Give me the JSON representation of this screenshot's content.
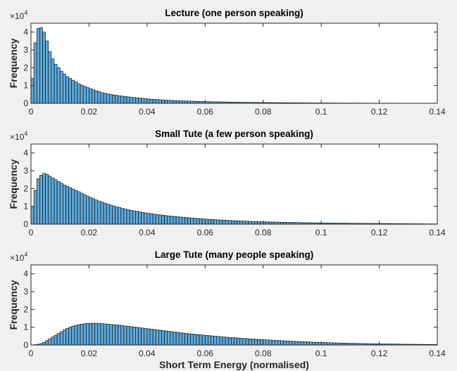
{
  "chart_data": [
    {
      "type": "bar",
      "title": "Lecture (one person speaking)",
      "ylabel": "Frequency",
      "xlabel": "",
      "xlim": [
        0,
        0.14
      ],
      "ylim": [
        0,
        45000
      ],
      "xticks": [
        "0",
        "0.02",
        "0.04",
        "0.06",
        "0.08",
        "0.1",
        "0.12",
        "0.14"
      ],
      "yticks": [
        "0",
        "1",
        "2",
        "3",
        "4"
      ],
      "y_multiplier": {
        "base": "×10",
        "exponent": "4"
      },
      "bin_width": 0.001,
      "bar_color": "#5ea8d9",
      "values": [
        14000,
        34000,
        42000,
        42500,
        40000,
        35000,
        29000,
        25000,
        22000,
        20000,
        18000,
        16500,
        15000,
        14000,
        13000,
        12000,
        11000,
        10200,
        9500,
        8800,
        8200,
        7600,
        7000,
        6500,
        6000,
        5600,
        5300,
        5000,
        4700,
        4500,
        4200,
        4000,
        3800,
        3600,
        3400,
        3200,
        3050,
        2900,
        2750,
        2600,
        2450,
        2300,
        2200,
        2100,
        2000,
        1900,
        1800,
        1700,
        1600,
        1500,
        1450,
        1400,
        1350,
        1300,
        1250,
        1200,
        1150,
        1100,
        1050,
        1000,
        950,
        900,
        870,
        840,
        810,
        780,
        750,
        720,
        690,
        660,
        630,
        600,
        580,
        560,
        540,
        520,
        500,
        480,
        460,
        440,
        420,
        400,
        385,
        370,
        355,
        340,
        325,
        310,
        300,
        290,
        280,
        270,
        260,
        250,
        240,
        230,
        220,
        210,
        200,
        195,
        190,
        185,
        180,
        175,
        170,
        165,
        160,
        155,
        150,
        145,
        140,
        135,
        130,
        125,
        120,
        115,
        110,
        105,
        100,
        98,
        96,
        94,
        92,
        90,
        88,
        86,
        84,
        82,
        80,
        78,
        76,
        74,
        72,
        70,
        68,
        66,
        64,
        62
      ]
    },
    {
      "type": "bar",
      "title": "Small Tute (a few person speaking)",
      "ylabel": "Frequency",
      "xlabel": "",
      "xlim": [
        0,
        0.14
      ],
      "ylim": [
        0,
        45000
      ],
      "xticks": [
        "0",
        "0.02",
        "0.04",
        "0.06",
        "0.08",
        "0.1",
        "0.12",
        "0.14"
      ],
      "yticks": [
        "0",
        "1",
        "2",
        "3",
        "4"
      ],
      "y_multiplier": {
        "base": "×10",
        "exponent": "4"
      },
      "bin_width": 0.001,
      "bar_color": "#5ea8d9",
      "values": [
        10000,
        19000,
        25500,
        27500,
        28500,
        28000,
        27000,
        26000,
        25000,
        24000,
        23000,
        22000,
        21200,
        20500,
        19700,
        19000,
        18200,
        17400,
        16600,
        15800,
        15000,
        14300,
        13600,
        13000,
        12400,
        11800,
        11200,
        10700,
        10200,
        9700,
        9300,
        8900,
        8500,
        8100,
        7800,
        7500,
        7200,
        6900,
        6600,
        6350,
        6100,
        5850,
        5600,
        5400,
        5200,
        5000,
        4800,
        4600,
        4450,
        4300,
        4150,
        4000,
        3850,
        3700,
        3560,
        3420,
        3290,
        3160,
        3040,
        2920,
        2810,
        2700,
        2600,
        2500,
        2400,
        2310,
        2220,
        2140,
        2060,
        1980,
        1900,
        1830,
        1760,
        1700,
        1640,
        1580,
        1520,
        1470,
        1420,
        1370,
        1320,
        1270,
        1230,
        1190,
        1150,
        1110,
        1070,
        1030,
        1000,
        970,
        940,
        910,
        880,
        850,
        820,
        790,
        770,
        750,
        730,
        710,
        690,
        670,
        650,
        630,
        610,
        590,
        570,
        550,
        530,
        510,
        490,
        470,
        455,
        440,
        425,
        410,
        395,
        380,
        365,
        350,
        340,
        330,
        320,
        310,
        300,
        290,
        280,
        270,
        260,
        250,
        240,
        230,
        220,
        210,
        200,
        190,
        180,
        170,
        160,
        150
      ]
    },
    {
      "type": "bar",
      "title": "Large Tute (many people speaking)",
      "ylabel": "Frequency",
      "xlabel": "Short Term Energy (normalised)",
      "xlim": [
        0,
        0.14
      ],
      "ylim": [
        0,
        45000
      ],
      "xticks": [
        "0",
        "0.02",
        "0.04",
        "0.06",
        "0.08",
        "0.1",
        "0.12",
        "0.14"
      ],
      "yticks": [
        "0",
        "1",
        "2",
        "3",
        "4"
      ],
      "y_multiplier": {
        "base": "×10",
        "exponent": "4"
      },
      "bin_width": 0.001,
      "bar_color": "#5ea8d9",
      "values": [
        0,
        200,
        400,
        800,
        1500,
        2500,
        3500,
        4500,
        5500,
        6500,
        7500,
        8500,
        9300,
        10000,
        10600,
        11000,
        11400,
        11700,
        11900,
        12100,
        12200,
        12250,
        12200,
        12100,
        12000,
        11850,
        11700,
        11550,
        11400,
        11250,
        11100,
        10900,
        10700,
        10500,
        10300,
        10100,
        9900,
        9700,
        9500,
        9300,
        9100,
        8900,
        8700,
        8500,
        8300,
        8100,
        7900,
        7700,
        7500,
        7300,
        7100,
        6900,
        6700,
        6500,
        6300,
        6150,
        6000,
        5850,
        5700,
        5550,
        5400,
        5250,
        5100,
        4950,
        4800,
        4650,
        4500,
        4380,
        4260,
        4140,
        4020,
        3900,
        3790,
        3680,
        3570,
        3460,
        3350,
        3250,
        3150,
        3050,
        2950,
        2850,
        2760,
        2670,
        2580,
        2490,
        2400,
        2320,
        2240,
        2160,
        2080,
        2000,
        1930,
        1860,
        1790,
        1720,
        1650,
        1590,
        1530,
        1470,
        1410,
        1350,
        1300,
        1250,
        1200,
        1150,
        1100,
        1060,
        1020,
        980,
        940,
        900,
        860,
        830,
        800,
        770,
        740,
        710,
        680,
        650,
        620,
        600,
        580,
        560,
        540,
        520,
        500,
        480,
        460,
        440,
        420,
        400,
        385,
        370,
        355,
        340,
        325,
        310,
        295,
        280
      ]
    }
  ]
}
